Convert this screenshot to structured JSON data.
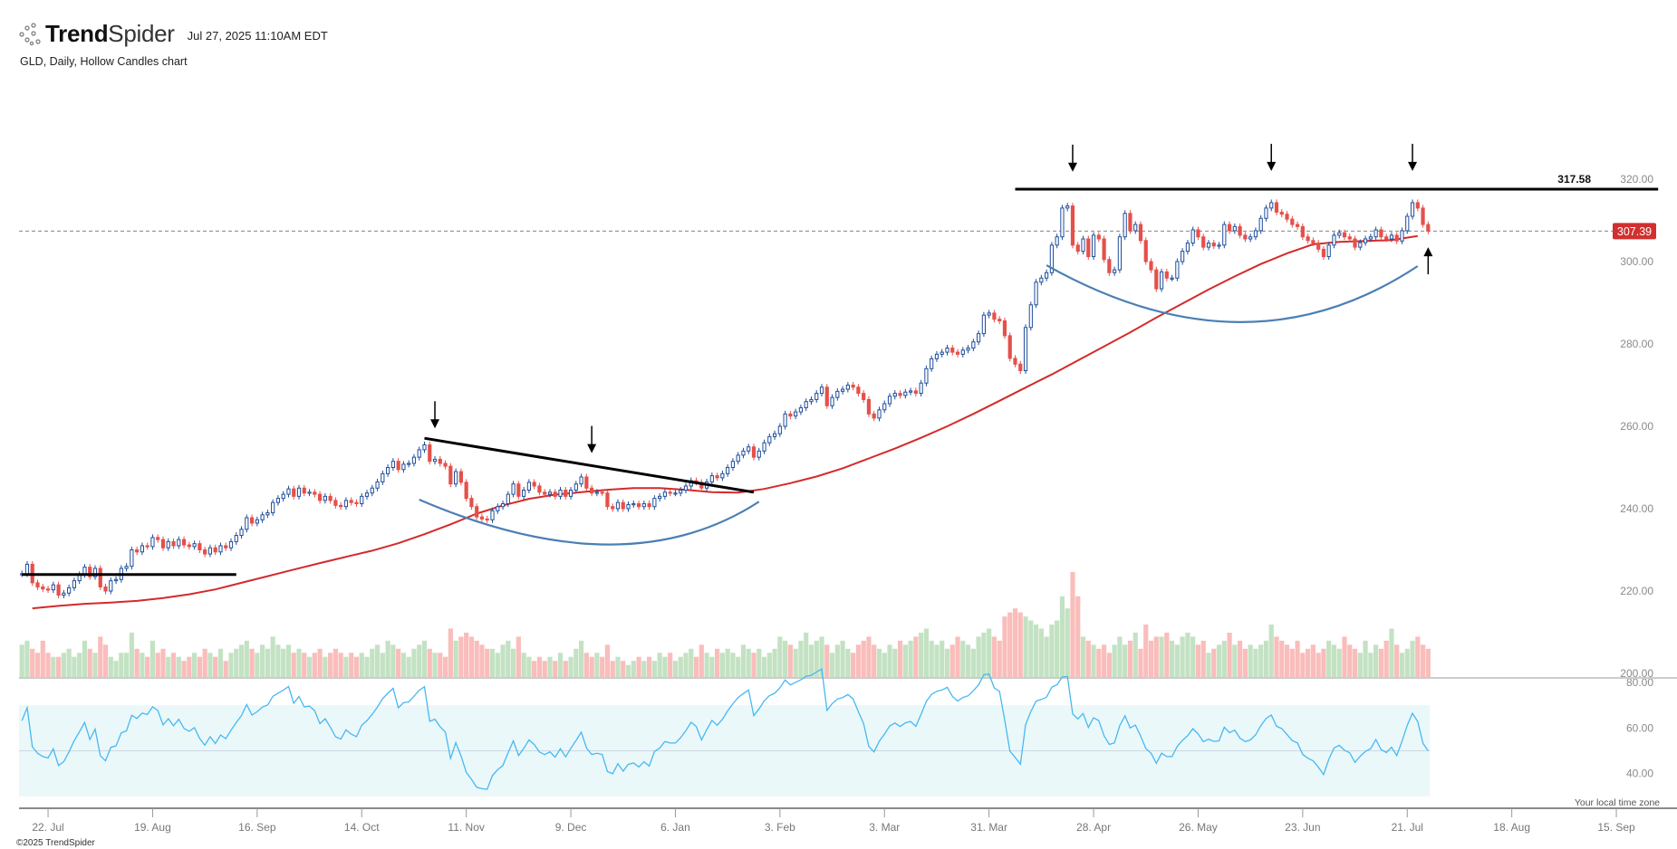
{
  "header": {
    "brand_bold": "Trend",
    "brand_light": "Spider",
    "timestamp": "Jul 27, 2025 11:10AM EDT",
    "subtitle": "GLD, Daily, Hollow Candles chart"
  },
  "footer": {
    "copyright": "©2025 TrendSpider",
    "timezone_note": "Your local time zone"
  },
  "colors": {
    "up_candle": "#1f4e9c",
    "down_candle": "#e5504a",
    "volume_up": "#c3e2c3",
    "volume_down": "#f9bdbb",
    "moving_average": "#d42a2a",
    "rsi_line": "#48b8f0",
    "rsi_band": "#eaf8fa",
    "arc": "#4a7fb5",
    "trendline": "#000000",
    "last_price_badge": "#d0302f"
  },
  "chart_data": {
    "type": "candlestick",
    "symbol": "GLD",
    "interval": "Daily",
    "style": "Hollow Candles",
    "price_axis": {
      "ticks": [
        "200.00",
        "220.00",
        "240.00",
        "260.00",
        "280.00",
        "300.00",
        "320.00"
      ],
      "range": [
        198,
        325
      ]
    },
    "rsi_axis": {
      "ticks": [
        "40.00",
        "60.00",
        "80.00"
      ],
      "band": [
        30,
        70
      ],
      "midline": 50
    },
    "last_price": 307.39,
    "last_price_label": "307.39",
    "resistance_label": "317.58",
    "x_ticks": [
      {
        "date": "2024-07-22",
        "label": "22. Jul"
      },
      {
        "date": "2024-08-19",
        "label": "19. Aug"
      },
      {
        "date": "2024-09-16",
        "label": "16. Sep"
      },
      {
        "date": "2024-10-14",
        "label": "14. Oct"
      },
      {
        "date": "2024-11-11",
        "label": "11. Nov"
      },
      {
        "date": "2024-12-09",
        "label": "9. Dec"
      },
      {
        "date": "2025-01-06",
        "label": "6. Jan"
      },
      {
        "date": "2025-02-03",
        "label": "3. Feb"
      },
      {
        "date": "2025-03-03",
        "label": "3. Mar"
      },
      {
        "date": "2025-03-31",
        "label": "31. Mar"
      },
      {
        "date": "2025-04-28",
        "label": "28. Apr"
      },
      {
        "date": "2025-05-26",
        "label": "26. May"
      },
      {
        "date": "2025-06-23",
        "label": "23. Jun"
      },
      {
        "date": "2025-07-21",
        "label": "21. Jul"
      },
      {
        "date": "2025-08-18",
        "label": "18. Aug"
      },
      {
        "date": "2025-09-15",
        "label": "15. Sep"
      }
    ],
    "weeks": [
      {
        "week": "2024-07-15",
        "close": [
          224.2,
          226.5,
          222.0,
          221.0,
          220.5
        ],
        "volume": [
          8,
          9,
          7,
          6,
          9
        ],
        "ma": 215.8
      },
      {
        "week": "2024-07-22",
        "close": [
          220.3,
          221.5,
          219.0,
          219.5,
          220.8
        ],
        "volume": [
          6,
          5,
          5,
          6,
          7
        ],
        "ma": 216.4
      },
      {
        "week": "2024-07-29",
        "close": [
          222.5,
          224.0,
          225.8,
          223.5,
          225.5
        ],
        "volume": [
          5,
          6,
          9,
          7,
          6
        ],
        "ma": 216.9
      },
      {
        "week": "2024-08-05",
        "close": [
          221.0,
          220.0,
          222.5,
          222.8,
          225.5
        ],
        "volume": [
          10,
          8,
          5,
          4,
          6
        ],
        "ma": 217.2
      },
      {
        "week": "2024-08-12",
        "close": [
          226.0,
          230.0,
          229.5,
          231.0,
          230.8
        ],
        "volume": [
          6,
          11,
          7,
          6,
          5
        ],
        "ma": 217.6
      },
      {
        "week": "2024-08-19",
        "close": [
          233.0,
          232.5,
          230.5,
          232.0,
          231.0
        ],
        "volume": [
          9,
          6,
          7,
          5,
          6
        ],
        "ma": 218.3
      },
      {
        "week": "2024-08-26",
        "close": [
          232.5,
          231.2,
          230.8,
          231.5,
          230.0
        ],
        "volume": [
          5,
          4,
          5,
          6,
          5
        ],
        "ma": 219.2
      },
      {
        "week": "2024-09-02",
        "close": [
          229.0,
          230.5,
          229.5,
          231.0,
          230.5
        ],
        "volume": [
          7,
          6,
          5,
          7,
          4
        ],
        "ma": 220.4
      },
      {
        "week": "2024-09-09",
        "close": [
          232.0,
          233.5,
          235.0,
          237.8,
          236.5
        ],
        "volume": [
          6,
          7,
          8,
          9,
          7
        ],
        "ma": 222.0
      },
      {
        "week": "2024-09-16",
        "close": [
          237.3,
          238.5,
          239.0,
          241.5,
          242.5
        ],
        "volume": [
          6,
          8,
          7,
          10,
          8
        ],
        "ma": 223.6
      },
      {
        "week": "2024-09-23",
        "close": [
          243.5,
          244.8,
          243.0,
          245.0,
          243.8
        ],
        "volume": [
          7,
          8,
          6,
          7,
          6
        ],
        "ma": 225.2
      },
      {
        "week": "2024-09-30",
        "close": [
          244.0,
          243.5,
          242.0,
          243.0,
          242.0
        ],
        "volume": [
          5,
          6,
          7,
          5,
          6
        ],
        "ma": 226.8
      },
      {
        "week": "2024-10-07",
        "close": [
          240.8,
          240.5,
          242.0,
          241.5,
          241.2
        ],
        "volume": [
          7,
          6,
          5,
          6,
          5
        ],
        "ma": 228.3
      },
      {
        "week": "2024-10-14",
        "close": [
          243.0,
          243.8,
          245.0,
          246.5,
          248.5
        ],
        "volume": [
          6,
          5,
          7,
          8,
          6
        ],
        "ma": 229.8
      },
      {
        "week": "2024-10-21",
        "close": [
          250.0,
          251.5,
          249.5,
          250.8,
          251.0
        ],
        "volume": [
          9,
          8,
          7,
          6,
          5
        ],
        "ma": 231.6
      },
      {
        "week": "2024-10-28",
        "close": [
          252.5,
          254.3,
          255.5,
          251.5,
          252.0
        ],
        "volume": [
          7,
          8,
          9,
          7,
          6
        ],
        "ma": 233.8
      },
      {
        "week": "2024-11-04",
        "close": [
          251.0,
          250.3,
          246.0,
          249.0,
          246.4
        ],
        "volume": [
          6,
          5,
          12,
          9,
          10
        ],
        "ma": 236.2
      },
      {
        "week": "2024-11-11",
        "close": [
          242.5,
          240.5,
          238.0,
          237.5,
          237.3
        ],
        "volume": [
          11,
          10,
          9,
          8,
          7
        ],
        "ma": 238.8
      },
      {
        "week": "2024-11-18",
        "close": [
          239.5,
          240.5,
          241.2,
          243.5,
          246.0
        ],
        "volume": [
          7,
          6,
          8,
          9,
          7
        ],
        "ma": 240.8
      },
      {
        "week": "2024-11-25",
        "close": [
          243.0,
          244.5,
          246.4,
          245.5,
          244.0
        ],
        "volume": [
          10,
          6,
          5,
          4,
          5
        ],
        "ma": 242.4
      },
      {
        "week": "2024-12-02",
        "close": [
          243.5,
          244.0,
          243.0,
          244.5,
          243.0
        ],
        "volume": [
          4,
          5,
          4,
          6,
          4
        ],
        "ma": 243.4
      },
      {
        "week": "2024-12-09",
        "close": [
          244.5,
          246.0,
          247.7,
          245.0,
          243.8
        ],
        "volume": [
          5,
          7,
          9,
          6,
          5
        ],
        "ma": 244.0
      },
      {
        "week": "2024-12-16",
        "close": [
          244.0,
          243.8,
          240.5,
          240.0,
          241.5
        ],
        "volume": [
          6,
          5,
          8,
          4,
          5
        ],
        "ma": 244.6
      },
      {
        "week": "2024-12-23",
        "close": [
          240.0,
          241.0,
          241.2,
          240.5,
          241.2
        ],
        "volume": [
          4,
          3,
          4,
          5,
          4
        ],
        "ma": 245.0
      },
      {
        "week": "2024-12-30",
        "close": [
          240.5,
          242.5,
          243.0,
          244.0,
          243.8
        ],
        "volume": [
          5,
          4,
          6,
          5,
          6
        ],
        "ma": 245.0
      },
      {
        "week": "2025-01-06",
        "close": [
          243.8,
          244.5,
          245.5,
          246.8,
          246.4
        ],
        "volume": [
          4,
          5,
          6,
          7,
          5
        ],
        "ma": 244.6
      },
      {
        "week": "2025-01-13",
        "close": [
          245.0,
          246.5,
          248.0,
          247.5,
          248.5
        ],
        "volume": [
          8,
          6,
          5,
          7,
          6
        ],
        "ma": 244.0
      },
      {
        "week": "2025-01-20",
        "close": [
          250.0,
          251.5,
          253.0,
          254.0,
          255.0
        ],
        "volume": [
          7,
          6,
          5,
          8,
          7
        ],
        "ma": 243.9
      },
      {
        "week": "2025-01-27",
        "close": [
          252.5,
          254.0,
          256.0,
          257.5,
          258.2
        ],
        "volume": [
          6,
          7,
          5,
          6,
          7
        ],
        "ma": 244.8
      },
      {
        "week": "2025-02-03",
        "close": [
          260.0,
          263.0,
          262.5,
          263.5,
          264.5
        ],
        "volume": [
          10,
          9,
          8,
          7,
          9
        ],
        "ma": 246.2
      },
      {
        "week": "2025-02-10",
        "close": [
          266.0,
          266.5,
          268.0,
          269.5,
          265.0
        ],
        "volume": [
          11,
          8,
          9,
          10,
          8
        ],
        "ma": 247.8
      },
      {
        "week": "2025-02-17",
        "close": [
          267.0,
          268.5,
          269.0,
          270.0,
          269.5
        ],
        "volume": [
          6,
          8,
          9,
          7,
          6
        ],
        "ma": 249.8
      },
      {
        "week": "2025-02-24",
        "close": [
          268.0,
          266.5,
          263.0,
          262.0,
          264.0
        ],
        "volume": [
          8,
          9,
          10,
          8,
          7
        ],
        "ma": 252.2
      },
      {
        "week": "2025-03-03",
        "close": [
          265.5,
          267.3,
          268.0,
          267.5,
          268.3
        ],
        "volume": [
          6,
          8,
          7,
          9,
          8
        ],
        "ma": 254.6
      },
      {
        "week": "2025-03-10",
        "close": [
          268.6,
          268.0,
          270.5,
          274.0,
          276.4
        ],
        "volume": [
          9,
          10,
          11,
          12,
          9
        ],
        "ma": 257.2
      },
      {
        "week": "2025-03-17",
        "close": [
          277.5,
          278.0,
          279.0,
          278.0,
          277.5
        ],
        "volume": [
          8,
          9,
          7,
          8,
          10
        ],
        "ma": 260.0
      },
      {
        "week": "2025-03-24",
        "close": [
          278.5,
          279.0,
          280.5,
          282.5,
          287.0
        ],
        "volume": [
          9,
          8,
          7,
          10,
          11
        ],
        "ma": 263.0
      },
      {
        "week": "2025-03-31",
        "close": [
          287.5,
          286.0,
          285.6,
          282.0,
          276.5
        ],
        "volume": [
          12,
          10,
          9,
          15,
          16
        ],
        "ma": 266.2
      },
      {
        "week": "2025-04-07",
        "close": [
          275.1,
          273.5,
          284.0,
          289.5,
          295.0
        ],
        "volume": [
          17,
          16,
          15,
          14,
          13
        ],
        "ma": 269.4
      },
      {
        "week": "2025-04-14",
        "close": [
          296.0,
          297.3,
          304.0,
          306.0,
          313.0
        ],
        "volume": [
          12,
          10,
          13,
          14,
          20
        ],
        "ma": 272.6
      },
      {
        "week": "2025-04-21",
        "close": [
          313.5,
          304.0,
          302.5,
          305.5,
          301.2
        ],
        "volume": [
          17,
          26,
          20,
          10,
          9
        ],
        "ma": 276.0
      },
      {
        "week": "2025-04-28",
        "close": [
          306.4,
          305.5,
          300.5,
          297.3,
          298.0
        ],
        "volume": [
          8,
          7,
          8,
          6,
          8
        ],
        "ma": 279.4
      },
      {
        "week": "2025-05-05",
        "close": [
          306.0,
          311.7,
          307.5,
          309.0,
          305.1
        ],
        "volume": [
          10,
          8,
          9,
          11,
          7
        ],
        "ma": 282.8
      },
      {
        "week": "2025-05-12",
        "close": [
          300.0,
          298.0,
          293.4,
          297.5,
          296.0
        ],
        "volume": [
          13,
          9,
          10,
          10,
          11
        ],
        "ma": 286.4
      },
      {
        "week": "2025-05-19",
        "close": [
          296.0,
          300.0,
          302.5,
          304.5,
          307.7
        ],
        "volume": [
          9,
          8,
          10,
          11,
          10
        ],
        "ma": 289.8
      },
      {
        "week": "2025-05-26",
        "close": [
          306.0,
          303.5,
          304.5,
          303.8,
          304.0
        ],
        "volume": [
          8,
          9,
          6,
          7,
          8
        ],
        "ma": 293.2
      },
      {
        "week": "2025-06-02",
        "close": [
          309.0,
          307.5,
          308.5,
          306.4,
          305.5
        ],
        "volume": [
          9,
          11,
          8,
          9,
          7
        ],
        "ma": 296.4
      },
      {
        "week": "2025-06-09",
        "close": [
          306.0,
          307.5,
          310.5,
          313.0,
          314.3
        ],
        "volume": [
          8,
          7,
          8,
          9,
          13
        ],
        "ma": 299.4
      },
      {
        "week": "2025-06-16",
        "close": [
          312.0,
          311.5,
          310.3,
          309.0,
          308.5
        ],
        "volume": [
          10,
          9,
          8,
          7,
          9
        ],
        "ma": 302.0
      },
      {
        "week": "2025-06-23",
        "close": [
          306.0,
          305.1,
          304.5,
          303.0,
          301.2
        ],
        "volume": [
          6,
          7,
          8,
          6,
          7
        ],
        "ma": 304.2
      },
      {
        "week": "2025-06-30",
        "close": [
          304.0,
          306.4,
          307.0,
          306.0,
          305.5
        ],
        "volume": [
          9,
          8,
          7,
          10,
          8
        ],
        "ma": 304.8
      },
      {
        "week": "2025-07-07",
        "close": [
          303.5,
          304.6,
          305.5,
          306.0,
          307.7
        ],
        "volume": [
          7,
          6,
          9,
          6,
          8
        ],
        "ma": 305.0
      },
      {
        "week": "2025-07-14",
        "close": [
          306.0,
          305.5,
          306.4,
          305.0,
          307.5
        ],
        "volume": [
          7,
          9,
          12,
          8,
          6
        ],
        "ma": 305.2
      },
      {
        "week": "2025-07-21",
        "close": [
          311.0,
          314.3,
          313.0,
          309.0,
          307.4
        ],
        "volume": [
          7,
          9,
          10,
          8,
          7
        ],
        "ma": 306.2
      }
    ],
    "annotations": {
      "lines": [
        {
          "from": {
            "date": "2024-07-15",
            "price": 224.0
          },
          "to": {
            "date": "2024-09-10",
            "price": 224.0
          }
        },
        {
          "from": {
            "date": "2024-10-30",
            "price": 257.1
          },
          "to": {
            "date": "2025-01-27",
            "price": 244.0
          }
        },
        {
          "from": {
            "date": "2025-04-07",
            "price": 317.58
          },
          "to": {
            "date": "2025-09-25",
            "price": 317.58
          }
        }
      ],
      "arcs": [
        {
          "start": {
            "date": "2024-10-29",
            "price": 242.2
          },
          "bottom": {
            "date": "2024-12-18",
            "price": 231.3
          },
          "end": {
            "date": "2025-01-28",
            "price": 241.7
          }
        },
        {
          "start": {
            "date": "2025-04-15",
            "price": 299.1
          },
          "bottom": {
            "date": "2025-06-05",
            "price": 285.3
          },
          "end": {
            "date": "2025-07-23",
            "price": 298.9
          }
        }
      ],
      "arrows": [
        {
          "date": "2024-11-01",
          "price": 259.5,
          "direction": "down"
        },
        {
          "date": "2024-12-13",
          "price": 253.5,
          "direction": "down"
        },
        {
          "date": "2025-04-22",
          "price": 321.8,
          "direction": "down"
        },
        {
          "date": "2025-06-13",
          "price": 322.0,
          "direction": "down"
        },
        {
          "date": "2025-07-22",
          "price": 322.0,
          "direction": "down"
        },
        {
          "date": "2025-07-25",
          "price": 303.5,
          "direction": "up"
        }
      ]
    }
  }
}
